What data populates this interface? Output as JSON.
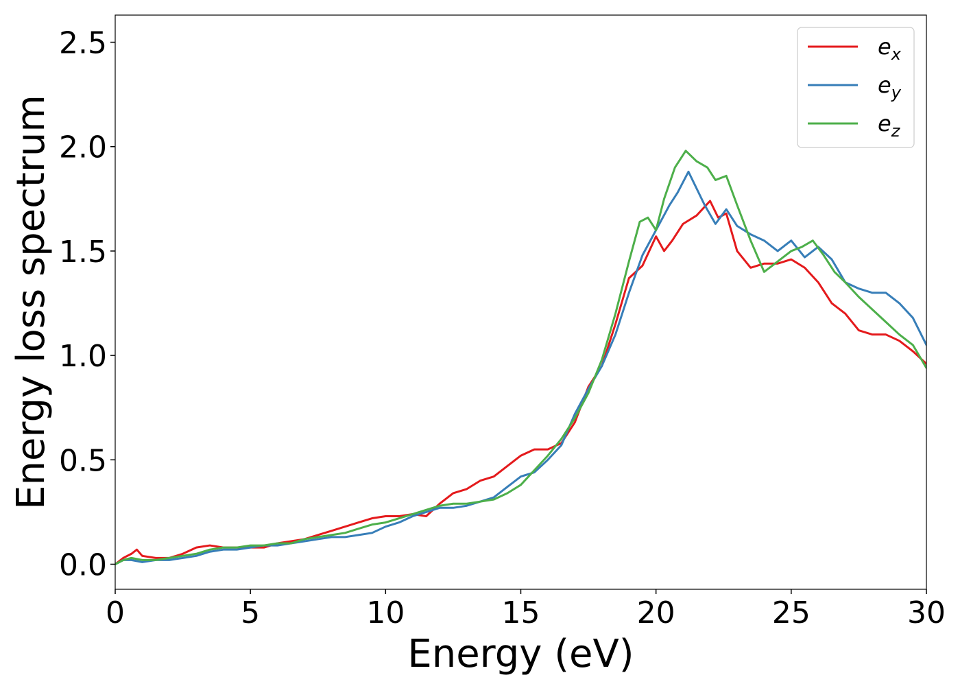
{
  "chart_data": {
    "type": "line",
    "title": "",
    "xlabel": "Energy (eV)",
    "ylabel": "Energy loss spectrum",
    "xlim": [
      0,
      30
    ],
    "ylim": [
      -0.12,
      2.63
    ],
    "xticks": [
      0,
      5,
      10,
      15,
      20,
      25,
      30
    ],
    "xtick_labels": [
      "0",
      "5",
      "10",
      "15",
      "20",
      "25",
      "30"
    ],
    "yticks": [
      0.0,
      0.5,
      1.0,
      1.5,
      2.0,
      2.5
    ],
    "ytick_labels": [
      "0.0",
      "0.5",
      "1.0",
      "1.5",
      "2.0",
      "2.5"
    ],
    "grid": false,
    "legend": "top-right",
    "series": [
      {
        "name": "e_x",
        "label_base": "e",
        "label_sub": "x",
        "color": "#e41a1c",
        "x": [
          0,
          0.3,
          0.6,
          0.8,
          1.0,
          1.5,
          2.0,
          2.5,
          3.0,
          3.5,
          4.0,
          4.5,
          5.0,
          5.5,
          6.0,
          6.5,
          7.0,
          7.5,
          8.0,
          8.5,
          9.0,
          9.5,
          10.0,
          10.5,
          11.0,
          11.5,
          12.0,
          12.5,
          13.0,
          13.5,
          14.0,
          14.5,
          15.0,
          15.5,
          16.0,
          16.5,
          17.0,
          17.5,
          18.0,
          18.5,
          19.0,
          19.5,
          20.0,
          20.3,
          20.6,
          21.0,
          21.5,
          22.0,
          22.3,
          22.6,
          23.0,
          23.5,
          24.0,
          24.5,
          25.0,
          25.5,
          26.0,
          26.5,
          27.0,
          27.5,
          28.0,
          28.5,
          29.0,
          29.5,
          30.0
        ],
        "values": [
          0.0,
          0.03,
          0.05,
          0.07,
          0.04,
          0.03,
          0.03,
          0.05,
          0.08,
          0.09,
          0.08,
          0.08,
          0.08,
          0.08,
          0.1,
          0.11,
          0.12,
          0.14,
          0.16,
          0.18,
          0.2,
          0.22,
          0.23,
          0.23,
          0.24,
          0.23,
          0.29,
          0.34,
          0.36,
          0.4,
          0.42,
          0.47,
          0.52,
          0.55,
          0.55,
          0.58,
          0.68,
          0.85,
          0.95,
          1.15,
          1.37,
          1.43,
          1.57,
          1.5,
          1.55,
          1.63,
          1.67,
          1.74,
          1.66,
          1.68,
          1.5,
          1.42,
          1.44,
          1.44,
          1.46,
          1.42,
          1.35,
          1.25,
          1.2,
          1.12,
          1.1,
          1.1,
          1.07,
          1.02,
          0.96
        ]
      },
      {
        "name": "e_y",
        "label_base": "e",
        "label_sub": "y",
        "color": "#377eb8",
        "x": [
          0,
          0.3,
          0.6,
          1.0,
          1.5,
          2.0,
          2.5,
          3.0,
          3.5,
          4.0,
          4.5,
          5.0,
          5.5,
          6.0,
          6.5,
          7.0,
          7.5,
          8.0,
          8.5,
          9.0,
          9.5,
          10.0,
          10.5,
          11.0,
          11.5,
          12.0,
          12.5,
          13.0,
          13.5,
          14.0,
          14.5,
          15.0,
          15.5,
          16.0,
          16.5,
          17.0,
          17.5,
          18.0,
          18.5,
          19.0,
          19.5,
          20.0,
          20.5,
          20.8,
          21.2,
          21.5,
          21.8,
          22.2,
          22.6,
          23.0,
          23.5,
          24.0,
          24.5,
          25.0,
          25.5,
          26.0,
          26.5,
          27.0,
          27.5,
          28.0,
          28.5,
          29.0,
          29.5,
          30.0
        ],
        "values": [
          0.0,
          0.02,
          0.02,
          0.01,
          0.02,
          0.02,
          0.03,
          0.04,
          0.06,
          0.07,
          0.07,
          0.08,
          0.09,
          0.09,
          0.1,
          0.11,
          0.12,
          0.13,
          0.13,
          0.14,
          0.15,
          0.18,
          0.2,
          0.23,
          0.25,
          0.27,
          0.27,
          0.28,
          0.3,
          0.32,
          0.37,
          0.42,
          0.44,
          0.5,
          0.57,
          0.72,
          0.84,
          0.95,
          1.1,
          1.3,
          1.48,
          1.6,
          1.72,
          1.78,
          1.88,
          1.8,
          1.72,
          1.63,
          1.7,
          1.62,
          1.58,
          1.55,
          1.5,
          1.55,
          1.47,
          1.52,
          1.46,
          1.35,
          1.32,
          1.3,
          1.3,
          1.25,
          1.18,
          1.05
        ]
      },
      {
        "name": "e_z",
        "label_base": "e",
        "label_sub": "z",
        "color": "#4daf4a",
        "x": [
          0,
          0.3,
          0.6,
          1.0,
          1.5,
          2.0,
          2.5,
          3.0,
          3.5,
          4.0,
          4.5,
          5.0,
          5.5,
          6.0,
          6.5,
          7.0,
          7.5,
          8.0,
          8.5,
          9.0,
          9.5,
          10.0,
          10.5,
          11.0,
          11.5,
          12.0,
          12.5,
          13.0,
          13.5,
          14.0,
          14.5,
          15.0,
          15.5,
          16.0,
          16.5,
          17.0,
          17.5,
          18.0,
          18.5,
          19.0,
          19.4,
          19.7,
          20.0,
          20.3,
          20.7,
          21.1,
          21.5,
          21.9,
          22.2,
          22.6,
          23.0,
          23.5,
          24.0,
          24.5,
          25.0,
          25.4,
          25.8,
          26.2,
          26.6,
          27.0,
          27.5,
          28.0,
          28.5,
          29.0,
          29.5,
          30.0
        ],
        "values": [
          0.0,
          0.02,
          0.03,
          0.02,
          0.02,
          0.03,
          0.04,
          0.05,
          0.07,
          0.08,
          0.08,
          0.09,
          0.09,
          0.1,
          0.1,
          0.12,
          0.13,
          0.14,
          0.15,
          0.17,
          0.19,
          0.2,
          0.22,
          0.24,
          0.26,
          0.28,
          0.29,
          0.29,
          0.3,
          0.31,
          0.34,
          0.38,
          0.45,
          0.52,
          0.6,
          0.7,
          0.82,
          0.98,
          1.2,
          1.45,
          1.64,
          1.66,
          1.6,
          1.75,
          1.9,
          1.98,
          1.93,
          1.9,
          1.84,
          1.86,
          1.72,
          1.55,
          1.4,
          1.45,
          1.5,
          1.52,
          1.55,
          1.48,
          1.4,
          1.35,
          1.28,
          1.22,
          1.16,
          1.1,
          1.05,
          0.94
        ]
      }
    ]
  }
}
